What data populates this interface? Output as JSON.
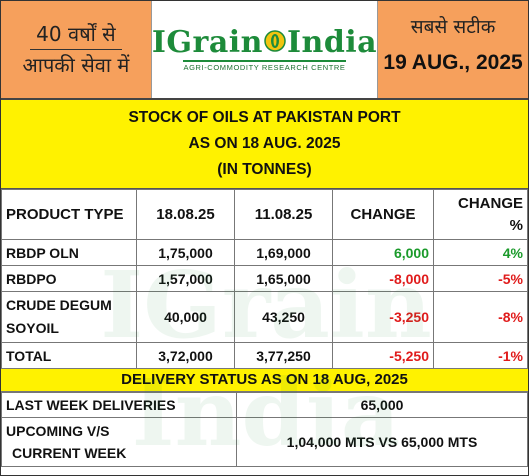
{
  "header": {
    "left_line1": "40 वर्षों से",
    "left_line2": "आपकी सेवा में",
    "logo_main_1": "IGrain",
    "logo_main_2": "India",
    "logo_sub": "AGRI-COMMODITY RESEARCH CENTRE",
    "slogan": "सबसे सटीक",
    "date": "19 AUG., 2025"
  },
  "title": {
    "line1": "STOCK OF OILS AT PAKISTAN PORT",
    "line2": "AS ON 18 AUG. 2025",
    "line3": "(IN TONNES)"
  },
  "watermark": "IGrain India",
  "table": {
    "headers": {
      "product": "PRODUCT TYPE",
      "date1": "18.08.25",
      "date2": "11.08.25",
      "change": "CHANGE",
      "change_pct_1": "CHANGE",
      "change_pct_2": "%"
    },
    "rows": [
      {
        "product": "RBDP OLN",
        "v1": "1,75,000",
        "v2": "1,69,000",
        "change": "6,000",
        "pct": "4%",
        "sign": "pos"
      },
      {
        "product": "RBDPO",
        "v1": "1,57,000",
        "v2": "1,65,000",
        "change": "-8,000",
        "pct": "-5%",
        "sign": "neg"
      },
      {
        "product_1": "CRUDE DEGUM",
        "product_2": "SOYOIL",
        "v1": "40,000",
        "v2": "43,250",
        "change": "-3,250",
        "pct": "-8%",
        "sign": "neg"
      },
      {
        "product": "TOTAL",
        "v1": "3,72,000",
        "v2": "3,77,250",
        "change": "-5,250",
        "pct": "-1%",
        "sign": "neg"
      }
    ]
  },
  "delivery": {
    "title": "DELIVERY STATUS AS ON 18 AUG, 2025",
    "last_week_label": "LAST WEEK DELIVERIES",
    "last_week_value": "65,000",
    "upcoming_label_1": "UPCOMING V/S",
    "upcoming_label_2": "CURRENT WEEK",
    "upcoming_value": "1,04,000 MTS VS 65,000 MTS"
  },
  "colors": {
    "header_orange": "#f6a05c",
    "title_yellow": "#fff200",
    "logo_green": "#1d8b3a",
    "positive_green": "#1a9a2a",
    "negative_red": "#e01b1b"
  }
}
